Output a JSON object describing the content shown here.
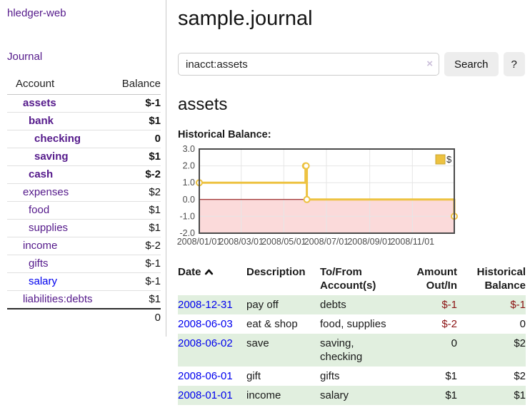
{
  "app": {
    "title": "hledger-web"
  },
  "colors": {
    "link_purple": "#551a8b",
    "link_blue": "#0000ee",
    "negative_dark": "#8b1212",
    "negative_light": "#c17979",
    "row_stripe_green": "#e1efdf",
    "button_gray": "#ededed"
  },
  "sidebar": {
    "journal_link": "Journal",
    "accounts": {
      "account_header": "Account",
      "balance_header": "Balance",
      "rows": [
        {
          "name": "assets",
          "depth": 1,
          "bold": true,
          "balance": "$-1",
          "neg": "dark"
        },
        {
          "name": "bank",
          "depth": 2,
          "bold": true,
          "balance": "$1",
          "neg": null
        },
        {
          "name": "checking",
          "depth": 3,
          "bold": true,
          "balance": "0",
          "neg": null
        },
        {
          "name": "saving",
          "depth": 3,
          "bold": true,
          "balance": "$1",
          "neg": null
        },
        {
          "name": "cash",
          "depth": 2,
          "bold": true,
          "balance": "$-2",
          "neg": "dark"
        },
        {
          "name": "expenses",
          "depth": 1,
          "bold": false,
          "balance": "$2",
          "neg": null
        },
        {
          "name": "food",
          "depth": 2,
          "bold": false,
          "balance": "$1",
          "neg": null
        },
        {
          "name": "supplies",
          "depth": 2,
          "bold": false,
          "balance": "$1",
          "neg": null
        },
        {
          "name": "income",
          "depth": 1,
          "bold": false,
          "balance": "$-2",
          "neg": "light"
        },
        {
          "name": "gifts",
          "depth": 2,
          "bold": false,
          "balance": "$-1",
          "neg": "light"
        },
        {
          "name": "salary",
          "depth": 2,
          "bold": false,
          "balance": "$-1",
          "neg": "light",
          "link": "blue"
        },
        {
          "name": "liabilities:debts",
          "depth": 1,
          "bold": false,
          "balance": "$1",
          "neg": null
        }
      ],
      "total": "0"
    }
  },
  "main": {
    "title": "sample.journal",
    "search": {
      "value": "inacct:assets",
      "clear_icon": "×",
      "button_label": "Search",
      "help_label": "?"
    },
    "account_heading": "assets",
    "chart_label": "Historical Balance:"
  },
  "chart_data": {
    "type": "line",
    "title": "Historical Balance",
    "step": true,
    "xlim": [
      "2008-01-01",
      "2008-12-31"
    ],
    "ylim": [
      -2,
      3
    ],
    "y_ticks": [
      3,
      2,
      1,
      0,
      -1,
      -2
    ],
    "x_ticks": [
      "2008/01/01",
      "2008/03/01",
      "2008/05/01",
      "2008/07/01",
      "2008/09/01",
      "2008/11/01"
    ],
    "legend_position": "top-right",
    "grid": true,
    "series": [
      {
        "name": "$",
        "color": "#edc240",
        "points": [
          [
            "2008-01-01",
            1
          ],
          [
            "2008-06-01",
            2
          ],
          [
            "2008-06-02",
            2
          ],
          [
            "2008-06-03",
            0
          ],
          [
            "2008-12-31",
            -1
          ]
        ]
      }
    ],
    "colors": {
      "negative_fill": "#fbdada",
      "zero_line": "#8b0000",
      "gridline": "#e6e6e6",
      "border": "#4a4a4a"
    }
  },
  "register": {
    "headers": [
      {
        "line1": "Date",
        "line2": ""
      },
      {
        "line1": "Description",
        "line2": ""
      },
      {
        "line1": "To/From",
        "line2": "Account(s)"
      },
      {
        "line1": "Amount",
        "line2": "Out/In"
      },
      {
        "line1": "Historical",
        "line2": "Balance"
      }
    ],
    "sort_icon": "chevron-up",
    "rows": [
      {
        "date": "2008-12-31",
        "description": "pay off",
        "accounts": "debts",
        "amount": "$-1",
        "amount_neg": true,
        "balance": "$-1",
        "balance_neg": true
      },
      {
        "date": "2008-06-03",
        "description": "eat & shop",
        "accounts": "food, supplies",
        "amount": "$-2",
        "amount_neg": true,
        "balance": "0",
        "balance_neg": false
      },
      {
        "date": "2008-06-02",
        "description": "save",
        "accounts": "saving, checking",
        "amount": "0",
        "amount_neg": false,
        "balance": "$2",
        "balance_neg": false
      },
      {
        "date": "2008-06-01",
        "description": "gift",
        "accounts": "gifts",
        "amount": "$1",
        "amount_neg": false,
        "balance": "$2",
        "balance_neg": false
      },
      {
        "date": "2008-01-01",
        "description": "income",
        "accounts": "salary",
        "amount": "$1",
        "amount_neg": false,
        "balance": "$1",
        "balance_neg": false
      }
    ]
  }
}
